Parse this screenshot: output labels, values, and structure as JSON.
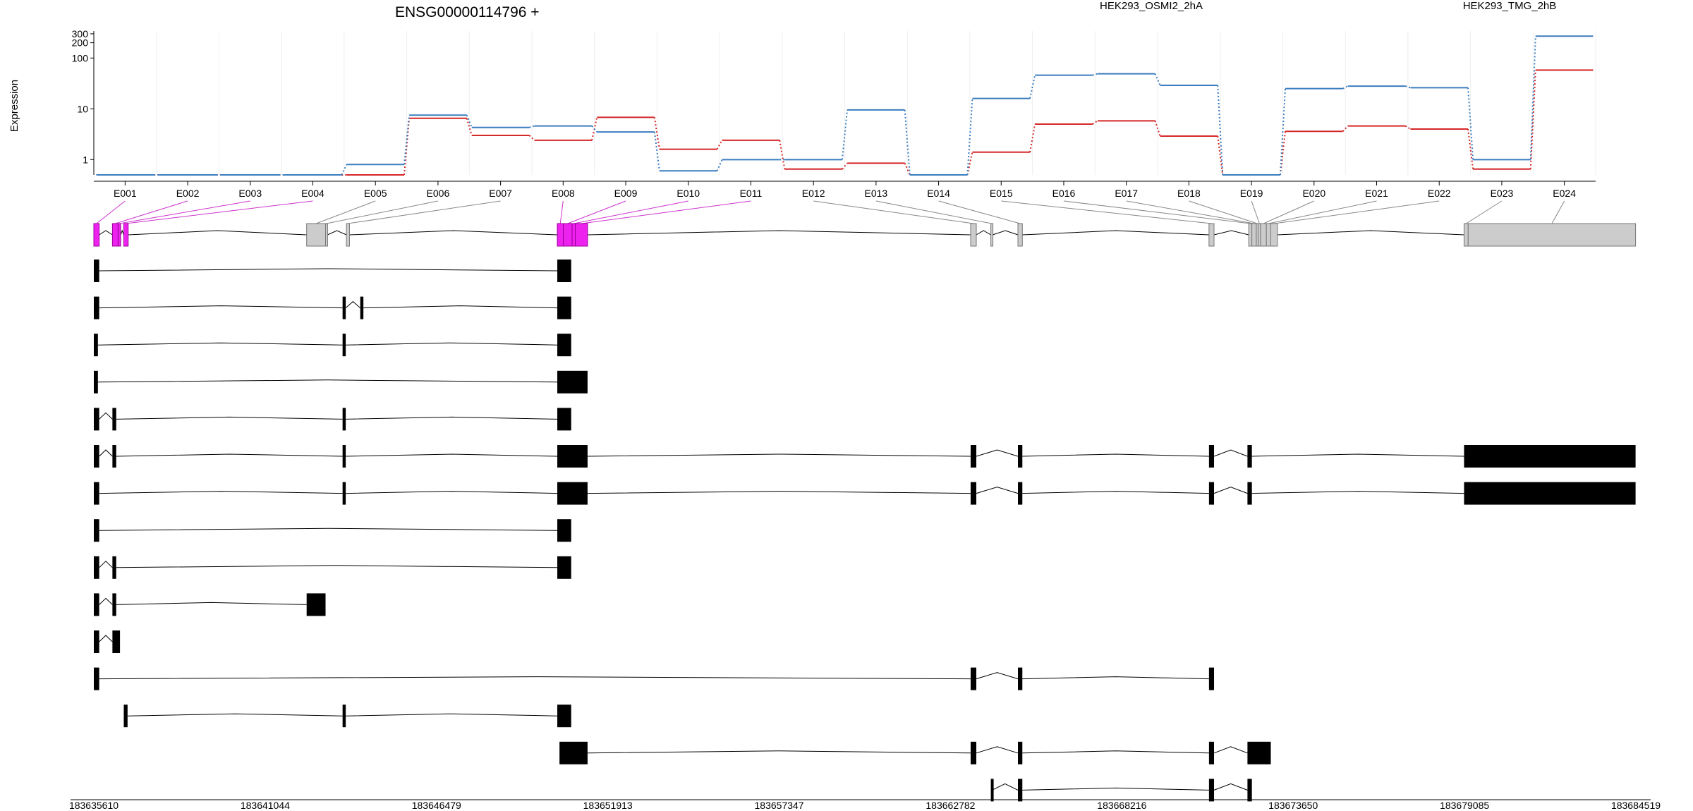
{
  "chart_data": {
    "type": "line",
    "title": "ENSG00000114796 +",
    "ylabel": "Expression",
    "yscale": "log",
    "ylim": [
      0.5,
      340
    ],
    "yticks": [
      {
        "label": "1",
        "value": 1
      },
      {
        "label": "10",
        "value": 10
      },
      {
        "label": "100",
        "value": 100
      },
      {
        "label": "200",
        "value": 200
      },
      {
        "label": "300",
        "value": 300
      }
    ],
    "categories": [
      "E001",
      "E002",
      "E003",
      "E004",
      "E005",
      "E006",
      "E007",
      "E008",
      "E009",
      "E010",
      "E011",
      "E012",
      "E013",
      "E014",
      "E015",
      "E016",
      "E017",
      "E018",
      "E019",
      "E020",
      "E021",
      "E022",
      "E023",
      "E024"
    ],
    "series": [
      {
        "name": "HEK293_OSMI2_2hA",
        "color": "#d62728",
        "values": [
          0.5,
          0.5,
          0.5,
          0.5,
          0.5,
          6.5,
          3.0,
          2.4,
          6.8,
          1.6,
          2.4,
          0.65,
          0.85,
          0.5,
          1.4,
          5.0,
          5.8,
          2.9,
          0.5,
          3.6,
          4.6,
          4.0,
          0.65,
          58
        ]
      },
      {
        "name": "HEK293_TMG_2hB",
        "color": "#3b7dbf",
        "values": [
          0.5,
          0.5,
          0.5,
          0.5,
          0.8,
          7.5,
          4.3,
          4.6,
          3.5,
          0.6,
          1.0,
          1.0,
          9.5,
          0.5,
          16,
          46,
          49,
          29,
          0.5,
          25,
          28,
          26,
          1.0,
          270
        ]
      }
    ],
    "genome_axis": {
      "range": [
        183635610,
        183684519
      ],
      "ticks": [
        "183635610",
        "183641044",
        "183646479",
        "183651913",
        "183657347",
        "183662782",
        "183668216",
        "183673650",
        "183679085",
        "183684519"
      ]
    },
    "exons": [
      {
        "id": "E001",
        "start": 183635610,
        "end": 183635780,
        "highlight": true
      },
      {
        "id": "E002",
        "start": 183636200,
        "end": 183636380,
        "highlight": true
      },
      {
        "id": "E003",
        "start": 183636380,
        "end": 183636460,
        "highlight": true
      },
      {
        "id": "E004",
        "start": 183636560,
        "end": 183636700,
        "highlight": true
      },
      {
        "id": "E005",
        "start": 183642360,
        "end": 183642960,
        "highlight": false
      },
      {
        "id": "E006",
        "start": 183642960,
        "end": 183643020,
        "highlight": false
      },
      {
        "id": "E007",
        "start": 183643620,
        "end": 183643720,
        "highlight": false
      },
      {
        "id": "E008",
        "start": 183650310,
        "end": 183650500,
        "highlight": true
      },
      {
        "id": "E009",
        "start": 183650500,
        "end": 183650780,
        "highlight": true
      },
      {
        "id": "E010",
        "start": 183650780,
        "end": 183650880,
        "highlight": true
      },
      {
        "id": "E011",
        "start": 183650880,
        "end": 183651270,
        "highlight": true
      },
      {
        "id": "E012",
        "start": 183663420,
        "end": 183663600,
        "highlight": false
      },
      {
        "id": "E013",
        "start": 183664060,
        "end": 183664120,
        "highlight": false
      },
      {
        "id": "E014",
        "start": 183664920,
        "end": 183665060,
        "highlight": false
      },
      {
        "id": "E015",
        "start": 183670980,
        "end": 183671140,
        "highlight": false
      },
      {
        "id": "E016",
        "start": 183672240,
        "end": 183672340,
        "highlight": false
      },
      {
        "id": "E017",
        "start": 183672340,
        "end": 183672480,
        "highlight": false
      },
      {
        "id": "E018",
        "start": 183672480,
        "end": 183672540,
        "highlight": false
      },
      {
        "id": "E019",
        "start": 183672540,
        "end": 183672620,
        "highlight": false
      },
      {
        "id": "E020",
        "start": 183672620,
        "end": 183672800,
        "highlight": false
      },
      {
        "id": "E021",
        "start": 183672800,
        "end": 183672940,
        "highlight": false
      },
      {
        "id": "E022",
        "start": 183672940,
        "end": 183673150,
        "highlight": false
      },
      {
        "id": "E023",
        "start": 183679070,
        "end": 183679200,
        "highlight": false
      },
      {
        "id": "E024",
        "start": 183679200,
        "end": 183684510,
        "highlight": false
      }
    ],
    "transcripts": [
      {
        "exons": [
          [
            183635610,
            183635780
          ],
          [
            183650310,
            183650750
          ]
        ]
      },
      {
        "exons": [
          [
            183635610,
            183635780
          ],
          [
            183643500,
            183643600
          ],
          [
            183644060,
            183644160
          ],
          [
            183650310,
            183650750
          ]
        ]
      },
      {
        "exons": [
          [
            183635610,
            183635740
          ],
          [
            183643500,
            183643600
          ],
          [
            183650310,
            183650750
          ]
        ]
      },
      {
        "exons": [
          [
            183635610,
            183635740
          ],
          [
            183650310,
            183651270
          ]
        ]
      },
      {
        "exons": [
          [
            183635610,
            183635780
          ],
          [
            183636200,
            183636320
          ],
          [
            183643500,
            183643600
          ],
          [
            183650310,
            183650750
          ]
        ]
      },
      {
        "exons": [
          [
            183635610,
            183635780
          ],
          [
            183636200,
            183636320
          ],
          [
            183643500,
            183643600
          ],
          [
            183650310,
            183651270
          ],
          [
            183663420,
            183663600
          ],
          [
            183664920,
            183665060
          ],
          [
            183670980,
            183671140
          ],
          [
            183672200,
            183672340
          ],
          [
            183679070,
            183684510
          ]
        ]
      },
      {
        "exons": [
          [
            183635610,
            183635780
          ],
          [
            183643500,
            183643600
          ],
          [
            183650310,
            183651270
          ],
          [
            183663420,
            183663600
          ],
          [
            183664920,
            183665060
          ],
          [
            183670980,
            183671140
          ],
          [
            183672200,
            183672340
          ],
          [
            183679070,
            183684510
          ]
        ]
      },
      {
        "exons": [
          [
            183635610,
            183635780
          ],
          [
            183650310,
            183650750
          ]
        ]
      },
      {
        "exons": [
          [
            183635610,
            183635780
          ],
          [
            183636200,
            183636320
          ],
          [
            183650310,
            183650750
          ]
        ]
      },
      {
        "exons": [
          [
            183635610,
            183635780
          ],
          [
            183636200,
            183636320
          ],
          [
            183642360,
            183642960
          ]
        ]
      },
      {
        "exons": [
          [
            183635610,
            183635780
          ],
          [
            183636200,
            183636440
          ]
        ]
      },
      {
        "exons": [
          [
            183635610,
            183635780
          ],
          [
            183663420,
            183663600
          ],
          [
            183664920,
            183665060
          ],
          [
            183670980,
            183671140
          ]
        ]
      },
      {
        "exons": [
          [
            183636560,
            183636680
          ],
          [
            183643500,
            183643600
          ],
          [
            183650310,
            183650750
          ]
        ]
      },
      {
        "exons": [
          [
            183650380,
            183651270
          ],
          [
            183663420,
            183663600
          ],
          [
            183664920,
            183665060
          ],
          [
            183670980,
            183671140
          ],
          [
            183672200,
            183672940
          ]
        ]
      },
      {
        "exons": [
          [
            183664060,
            183664100
          ],
          [
            183664920,
            183665060
          ],
          [
            183670980,
            183671140
          ],
          [
            183672200,
            183672340
          ]
        ]
      }
    ]
  }
}
